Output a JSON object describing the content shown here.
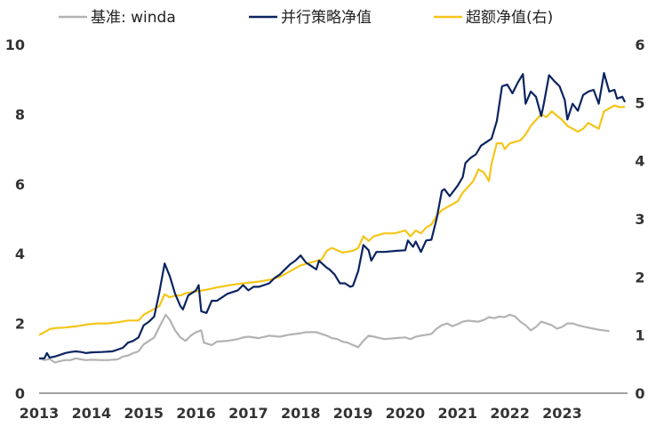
{
  "chart_data": {
    "type": "line",
    "title": "",
    "xlabel": "",
    "ylabel": "",
    "x_ticks": [
      "2013",
      "2014",
      "2015",
      "2016",
      "2017",
      "2018",
      "2019",
      "2020",
      "2021",
      "2022",
      "2023"
    ],
    "ylim": [
      0,
      10
    ],
    "y_ticks": [
      0,
      2,
      4,
      6,
      8,
      10
    ],
    "y2lim": [
      0,
      6
    ],
    "y2_ticks": [
      0,
      1,
      2,
      3,
      4,
      5,
      6
    ],
    "legend_position": "top",
    "grid": false,
    "series": [
      {
        "name": "基准: winda",
        "axis": "left",
        "color": "#b3b3b3",
        "points": [
          [
            2013.0,
            1.0
          ],
          [
            2013.1,
            0.95
          ],
          [
            2013.2,
            0.98
          ],
          [
            2013.3,
            0.88
          ],
          [
            2013.4,
            0.92
          ],
          [
            2013.5,
            0.95
          ],
          [
            2013.6,
            0.95
          ],
          [
            2013.7,
            1.0
          ],
          [
            2013.8,
            0.97
          ],
          [
            2013.9,
            0.95
          ],
          [
            2014.0,
            0.96
          ],
          [
            2014.2,
            0.95
          ],
          [
            2014.3,
            0.95
          ],
          [
            2014.5,
            0.97
          ],
          [
            2014.6,
            1.05
          ],
          [
            2014.7,
            1.08
          ],
          [
            2014.8,
            1.15
          ],
          [
            2014.9,
            1.2
          ],
          [
            2015.0,
            1.4
          ],
          [
            2015.1,
            1.5
          ],
          [
            2015.2,
            1.6
          ],
          [
            2015.3,
            1.9
          ],
          [
            2015.42,
            2.25
          ],
          [
            2015.5,
            2.1
          ],
          [
            2015.6,
            1.8
          ],
          [
            2015.7,
            1.6
          ],
          [
            2015.8,
            1.5
          ],
          [
            2015.9,
            1.65
          ],
          [
            2016.0,
            1.75
          ],
          [
            2016.1,
            1.8
          ],
          [
            2016.15,
            1.45
          ],
          [
            2016.3,
            1.38
          ],
          [
            2016.4,
            1.48
          ],
          [
            2016.6,
            1.5
          ],
          [
            2016.8,
            1.55
          ],
          [
            2016.9,
            1.6
          ],
          [
            2017.0,
            1.62
          ],
          [
            2017.2,
            1.58
          ],
          [
            2017.4,
            1.65
          ],
          [
            2017.6,
            1.62
          ],
          [
            2017.8,
            1.68
          ],
          [
            2018.0,
            1.72
          ],
          [
            2018.1,
            1.75
          ],
          [
            2018.3,
            1.75
          ],
          [
            2018.4,
            1.7
          ],
          [
            2018.5,
            1.65
          ],
          [
            2018.6,
            1.58
          ],
          [
            2018.7,
            1.55
          ],
          [
            2018.8,
            1.48
          ],
          [
            2018.9,
            1.45
          ],
          [
            2019.0,
            1.38
          ],
          [
            2019.1,
            1.32
          ],
          [
            2019.2,
            1.5
          ],
          [
            2019.3,
            1.65
          ],
          [
            2019.4,
            1.62
          ],
          [
            2019.6,
            1.55
          ],
          [
            2019.8,
            1.58
          ],
          [
            2020.0,
            1.6
          ],
          [
            2020.1,
            1.55
          ],
          [
            2020.2,
            1.62
          ],
          [
            2020.3,
            1.65
          ],
          [
            2020.5,
            1.7
          ],
          [
            2020.6,
            1.85
          ],
          [
            2020.7,
            1.95
          ],
          [
            2020.8,
            2.0
          ],
          [
            2020.9,
            1.92
          ],
          [
            2021.0,
            1.98
          ],
          [
            2021.1,
            2.05
          ],
          [
            2021.2,
            2.08
          ],
          [
            2021.4,
            2.05
          ],
          [
            2021.5,
            2.1
          ],
          [
            2021.6,
            2.18
          ],
          [
            2021.7,
            2.15
          ],
          [
            2021.8,
            2.2
          ],
          [
            2021.9,
            2.18
          ],
          [
            2022.0,
            2.25
          ],
          [
            2022.1,
            2.2
          ],
          [
            2022.2,
            2.05
          ],
          [
            2022.3,
            1.95
          ],
          [
            2022.4,
            1.8
          ],
          [
            2022.5,
            1.9
          ],
          [
            2022.6,
            2.05
          ],
          [
            2022.7,
            2.0
          ],
          [
            2022.8,
            1.95
          ],
          [
            2022.9,
            1.85
          ],
          [
            2023.0,
            1.9
          ],
          [
            2023.1,
            2.0
          ],
          [
            2023.2,
            2.0
          ],
          [
            2023.3,
            1.95
          ],
          [
            2023.5,
            1.88
          ],
          [
            2023.6,
            1.85
          ],
          [
            2023.7,
            1.82
          ],
          [
            2023.8,
            1.8
          ],
          [
            2023.9,
            1.78
          ]
        ]
      },
      {
        "name": "并行策略净值",
        "axis": "left",
        "color": "#0b2460",
        "points": [
          [
            2013.0,
            1.0
          ],
          [
            2013.1,
            1.0
          ],
          [
            2013.15,
            1.15
          ],
          [
            2013.2,
            1.02
          ],
          [
            2013.3,
            1.05
          ],
          [
            2013.4,
            1.1
          ],
          [
            2013.5,
            1.15
          ],
          [
            2013.6,
            1.18
          ],
          [
            2013.7,
            1.2
          ],
          [
            2013.8,
            1.18
          ],
          [
            2013.9,
            1.15
          ],
          [
            2014.0,
            1.17
          ],
          [
            2014.2,
            1.18
          ],
          [
            2014.4,
            1.2
          ],
          [
            2014.5,
            1.25
          ],
          [
            2014.6,
            1.3
          ],
          [
            2014.7,
            1.45
          ],
          [
            2014.8,
            1.5
          ],
          [
            2014.9,
            1.6
          ],
          [
            2015.0,
            1.95
          ],
          [
            2015.1,
            2.05
          ],
          [
            2015.2,
            2.2
          ],
          [
            2015.3,
            2.9
          ],
          [
            2015.4,
            3.72
          ],
          [
            2015.5,
            3.35
          ],
          [
            2015.6,
            2.85
          ],
          [
            2015.7,
            2.5
          ],
          [
            2015.75,
            2.4
          ],
          [
            2015.85,
            2.8
          ],
          [
            2016.0,
            2.95
          ],
          [
            2016.05,
            3.1
          ],
          [
            2016.1,
            2.35
          ],
          [
            2016.2,
            2.3
          ],
          [
            2016.3,
            2.65
          ],
          [
            2016.4,
            2.65
          ],
          [
            2016.5,
            2.75
          ],
          [
            2016.6,
            2.85
          ],
          [
            2016.7,
            2.9
          ],
          [
            2016.8,
            2.95
          ],
          [
            2016.9,
            3.1
          ],
          [
            2017.0,
            2.95
          ],
          [
            2017.1,
            3.05
          ],
          [
            2017.2,
            3.05
          ],
          [
            2017.3,
            3.1
          ],
          [
            2017.4,
            3.15
          ],
          [
            2017.5,
            3.3
          ],
          [
            2017.6,
            3.4
          ],
          [
            2017.7,
            3.55
          ],
          [
            2017.8,
            3.7
          ],
          [
            2017.9,
            3.8
          ],
          [
            2018.0,
            3.95
          ],
          [
            2018.1,
            3.75
          ],
          [
            2018.2,
            3.65
          ],
          [
            2018.3,
            3.55
          ],
          [
            2018.35,
            3.8
          ],
          [
            2018.5,
            3.6
          ],
          [
            2018.55,
            3.55
          ],
          [
            2018.65,
            3.4
          ],
          [
            2018.75,
            3.15
          ],
          [
            2018.85,
            3.15
          ],
          [
            2018.95,
            3.05
          ],
          [
            2019.0,
            3.08
          ],
          [
            2019.1,
            3.5
          ],
          [
            2019.2,
            4.25
          ],
          [
            2019.3,
            4.1
          ],
          [
            2019.35,
            3.8
          ],
          [
            2019.45,
            4.05
          ],
          [
            2019.6,
            4.05
          ],
          [
            2019.8,
            4.08
          ],
          [
            2020.0,
            4.1
          ],
          [
            2020.05,
            4.38
          ],
          [
            2020.15,
            4.2
          ],
          [
            2020.2,
            4.35
          ],
          [
            2020.3,
            4.05
          ],
          [
            2020.4,
            4.38
          ],
          [
            2020.5,
            4.4
          ],
          [
            2020.6,
            5.0
          ],
          [
            2020.7,
            5.8
          ],
          [
            2020.75,
            5.85
          ],
          [
            2020.85,
            5.65
          ],
          [
            2021.0,
            5.95
          ],
          [
            2021.1,
            6.2
          ],
          [
            2021.15,
            6.6
          ],
          [
            2021.25,
            6.75
          ],
          [
            2021.35,
            6.85
          ],
          [
            2021.45,
            7.1
          ],
          [
            2021.55,
            7.2
          ],
          [
            2021.65,
            7.3
          ],
          [
            2021.75,
            7.8
          ],
          [
            2021.85,
            8.8
          ],
          [
            2021.95,
            8.85
          ],
          [
            2022.05,
            8.6
          ],
          [
            2022.15,
            8.9
          ],
          [
            2022.25,
            9.15
          ],
          [
            2022.3,
            8.3
          ],
          [
            2022.4,
            8.65
          ],
          [
            2022.5,
            8.5
          ],
          [
            2022.6,
            7.95
          ],
          [
            2022.65,
            8.3
          ],
          [
            2022.75,
            9.12
          ],
          [
            2022.85,
            8.95
          ],
          [
            2022.95,
            8.8
          ],
          [
            2023.05,
            8.4
          ],
          [
            2023.1,
            7.85
          ],
          [
            2023.2,
            8.3
          ],
          [
            2023.3,
            8.1
          ],
          [
            2023.4,
            8.55
          ],
          [
            2023.5,
            8.65
          ],
          [
            2023.6,
            8.7
          ],
          [
            2023.7,
            8.3
          ],
          [
            2023.8,
            9.18
          ],
          [
            2023.9,
            8.65
          ],
          [
            2024.0,
            8.7
          ],
          [
            2024.05,
            8.45
          ],
          [
            2024.15,
            8.5
          ],
          [
            2024.2,
            8.35
          ]
        ]
      },
      {
        "name": "超额净值(右)",
        "axis": "right",
        "color": "#f5c518",
        "points": [
          [
            2013.0,
            1.0
          ],
          [
            2013.1,
            1.05
          ],
          [
            2013.2,
            1.1
          ],
          [
            2013.3,
            1.12
          ],
          [
            2013.5,
            1.13
          ],
          [
            2013.7,
            1.15
          ],
          [
            2013.9,
            1.18
          ],
          [
            2014.1,
            1.2
          ],
          [
            2014.3,
            1.2
          ],
          [
            2014.5,
            1.22
          ],
          [
            2014.7,
            1.25
          ],
          [
            2014.9,
            1.25
          ],
          [
            2015.0,
            1.35
          ],
          [
            2015.2,
            1.45
          ],
          [
            2015.3,
            1.5
          ],
          [
            2015.4,
            1.7
          ],
          [
            2015.5,
            1.65
          ],
          [
            2015.6,
            1.68
          ],
          [
            2015.7,
            1.68
          ],
          [
            2015.8,
            1.72
          ],
          [
            2016.0,
            1.75
          ],
          [
            2016.2,
            1.78
          ],
          [
            2016.4,
            1.82
          ],
          [
            2016.6,
            1.85
          ],
          [
            2016.8,
            1.88
          ],
          [
            2017.0,
            1.9
          ],
          [
            2017.2,
            1.92
          ],
          [
            2017.4,
            1.95
          ],
          [
            2017.6,
            2.0
          ],
          [
            2017.8,
            2.1
          ],
          [
            2018.0,
            2.2
          ],
          [
            2018.2,
            2.25
          ],
          [
            2018.4,
            2.3
          ],
          [
            2018.5,
            2.45
          ],
          [
            2018.6,
            2.5
          ],
          [
            2018.8,
            2.42
          ],
          [
            2019.0,
            2.45
          ],
          [
            2019.1,
            2.5
          ],
          [
            2019.2,
            2.7
          ],
          [
            2019.3,
            2.62
          ],
          [
            2019.4,
            2.7
          ],
          [
            2019.6,
            2.75
          ],
          [
            2019.8,
            2.75
          ],
          [
            2020.0,
            2.8
          ],
          [
            2020.1,
            2.7
          ],
          [
            2020.2,
            2.8
          ],
          [
            2020.3,
            2.75
          ],
          [
            2020.4,
            2.85
          ],
          [
            2020.5,
            2.9
          ],
          [
            2020.6,
            3.05
          ],
          [
            2020.7,
            3.15
          ],
          [
            2020.8,
            3.2
          ],
          [
            2021.0,
            3.3
          ],
          [
            2021.1,
            3.45
          ],
          [
            2021.2,
            3.55
          ],
          [
            2021.3,
            3.65
          ],
          [
            2021.4,
            3.85
          ],
          [
            2021.5,
            3.8
          ],
          [
            2021.6,
            3.65
          ],
          [
            2021.65,
            3.95
          ],
          [
            2021.75,
            4.3
          ],
          [
            2021.85,
            4.3
          ],
          [
            2021.9,
            4.2
          ],
          [
            2022.0,
            4.3
          ],
          [
            2022.2,
            4.35
          ],
          [
            2022.3,
            4.45
          ],
          [
            2022.4,
            4.6
          ],
          [
            2022.5,
            4.7
          ],
          [
            2022.6,
            4.8
          ],
          [
            2022.7,
            4.75
          ],
          [
            2022.8,
            4.85
          ],
          [
            2023.0,
            4.7
          ],
          [
            2023.1,
            4.6
          ],
          [
            2023.2,
            4.55
          ],
          [
            2023.3,
            4.5
          ],
          [
            2023.4,
            4.55
          ],
          [
            2023.5,
            4.65
          ],
          [
            2023.6,
            4.6
          ],
          [
            2023.7,
            4.55
          ],
          [
            2023.8,
            4.85
          ],
          [
            2023.9,
            4.9
          ],
          [
            2024.0,
            4.95
          ],
          [
            2024.1,
            4.92
          ],
          [
            2024.2,
            4.93
          ]
        ]
      }
    ]
  }
}
